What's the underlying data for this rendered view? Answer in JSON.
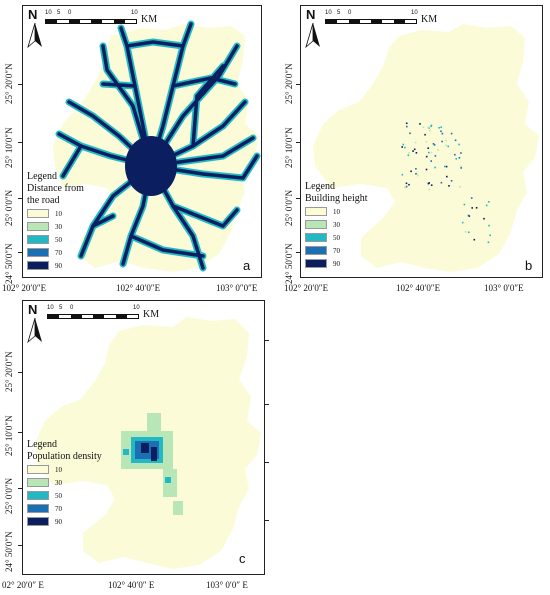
{
  "panels": {
    "a": {
      "label": "a",
      "legend_title": "Legend\nDistance from\nthe road",
      "legend_items": [
        {
          "label": "10",
          "color": "#fbfbd8"
        },
        {
          "label": "30",
          "color": "#b9e6b6"
        },
        {
          "label": "50",
          "color": "#23b9c4"
        },
        {
          "label": "70",
          "color": "#1d6fb3"
        },
        {
          "label": "90",
          "color": "#0b1f60"
        }
      ],
      "y_ticks": [
        "25° 20′0″N",
        "25° 10′0″N",
        "25° 0′0″N",
        "24° 50′0″N"
      ],
      "x_ticks": [
        "102° 20′0″E",
        "102° 40′0″E",
        "103° 0″0″E"
      ]
    },
    "b": {
      "label": "b",
      "legend_title": "Legend\nBuilding height",
      "legend_items": [
        {
          "label": "10",
          "color": "#fbfbd8"
        },
        {
          "label": "30",
          "color": "#b9e6b6"
        },
        {
          "label": "50",
          "color": "#23b9c4"
        },
        {
          "label": "70",
          "color": "#1d6fb3"
        },
        {
          "label": "90",
          "color": "#0b1f60"
        }
      ],
      "y_ticks": [
        "25° 20′0″N",
        "25° 10′0″N",
        "25° 0′0″N",
        "24° 50′0″N"
      ],
      "x_ticks": [
        "102° 20′0″E",
        "102° 40′0″E",
        "103° 0′0″E"
      ]
    },
    "c": {
      "label": "c",
      "legend_title": "Legend\nPopulation density",
      "legend_items": [
        {
          "label": "10",
          "color": "#fbfbd8"
        },
        {
          "label": "30",
          "color": "#b9e6b6"
        },
        {
          "label": "50",
          "color": "#23b9c4"
        },
        {
          "label": "70",
          "color": "#1d6fb3"
        },
        {
          "label": "90",
          "color": "#0b1f60"
        }
      ],
      "y_ticks": [
        "25° 20′0″N",
        "25° 10′0″N",
        "25° 0′0″N",
        "24° 50′0″N"
      ],
      "x_ticks": [
        "02° 20′0″ E",
        "102° 40′0″ E",
        "103° 0′0″ E"
      ]
    }
  },
  "north_label": "N",
  "scale_ticks": [
    "10",
    "5",
    "0",
    "10"
  ],
  "scale_unit": "KM",
  "colors": {
    "region_fill": "#fbfbd8",
    "road_outline": "#23b9c4",
    "road_core": "#0b1f60"
  }
}
